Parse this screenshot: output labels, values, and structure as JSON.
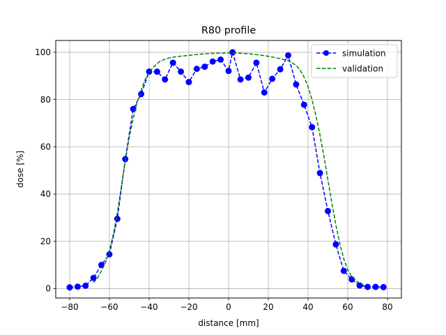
{
  "chart_data": {
    "type": "line",
    "title": "R80 profile",
    "xlabel": "distance [mm]",
    "ylabel": "dose [%]",
    "xlim": [
      -87,
      87
    ],
    "ylim": [
      -4,
      105
    ],
    "x_ticks": [
      -80,
      -60,
      -40,
      -20,
      0,
      20,
      40,
      60,
      80
    ],
    "y_ticks": [
      0,
      20,
      40,
      60,
      80,
      100
    ],
    "grid": true,
    "legend_position": "top-right",
    "series": [
      {
        "name": "simulation",
        "color": "#0000ff",
        "style": "dashed-with-markers",
        "x": [
          -80,
          -76,
          -72,
          -68,
          -64,
          -60,
          -56,
          -52,
          -48,
          -44,
          -40,
          -36,
          -32,
          -28,
          -24,
          -20,
          -16,
          -12,
          -8,
          -4,
          0,
          2,
          6,
          10,
          14,
          18,
          22,
          26,
          30,
          34,
          38,
          42,
          46,
          50,
          54,
          58,
          62,
          66,
          70,
          74,
          78
        ],
        "values": [
          0.5,
          0.8,
          1.2,
          4.5,
          10,
          14.5,
          29.5,
          54.8,
          76,
          82.3,
          91.8,
          91.8,
          88.5,
          95.6,
          91.8,
          87.4,
          93,
          93.9,
          96.1,
          96.9,
          92.1,
          100,
          88.5,
          89.3,
          95.6,
          83,
          88.8,
          92.8,
          98.7,
          86.4,
          77.8,
          68.3,
          48.9,
          32.8,
          18.7,
          7.5,
          3.9,
          1.3,
          0.7,
          0.7,
          0.6
        ]
      },
      {
        "name": "validation",
        "color": "#008000",
        "style": "dashed",
        "x": [
          -68,
          -66,
          -64,
          -62,
          -60,
          -58,
          -56,
          -54,
          -52,
          -50,
          -48,
          -46,
          -44,
          -42,
          -40,
          -38,
          -36,
          -34,
          -30,
          -26,
          -20,
          -14,
          -10,
          -6,
          -2,
          2,
          6,
          10,
          14,
          18,
          22,
          26,
          30,
          34,
          36,
          38,
          40,
          42,
          44,
          46,
          48,
          50,
          52,
          54,
          56,
          58,
          60,
          62,
          64,
          66,
          68
        ],
        "values": [
          2.5,
          4.5,
          7.5,
          11,
          16,
          23,
          32,
          43,
          54,
          64,
          72,
          79,
          84,
          88.5,
          91.5,
          93.5,
          95.2,
          96.5,
          97.6,
          98.2,
          98.7,
          99.2,
          99.5,
          99.6,
          99.7,
          99.7,
          99.6,
          99.4,
          99,
          98.6,
          98,
          97.3,
          96.5,
          94.5,
          92.5,
          89.5,
          85.5,
          80,
          73,
          65,
          56,
          46,
          36,
          27,
          19,
          12.5,
          8,
          5,
          3.5,
          2.2,
          1.5
        ]
      }
    ]
  }
}
